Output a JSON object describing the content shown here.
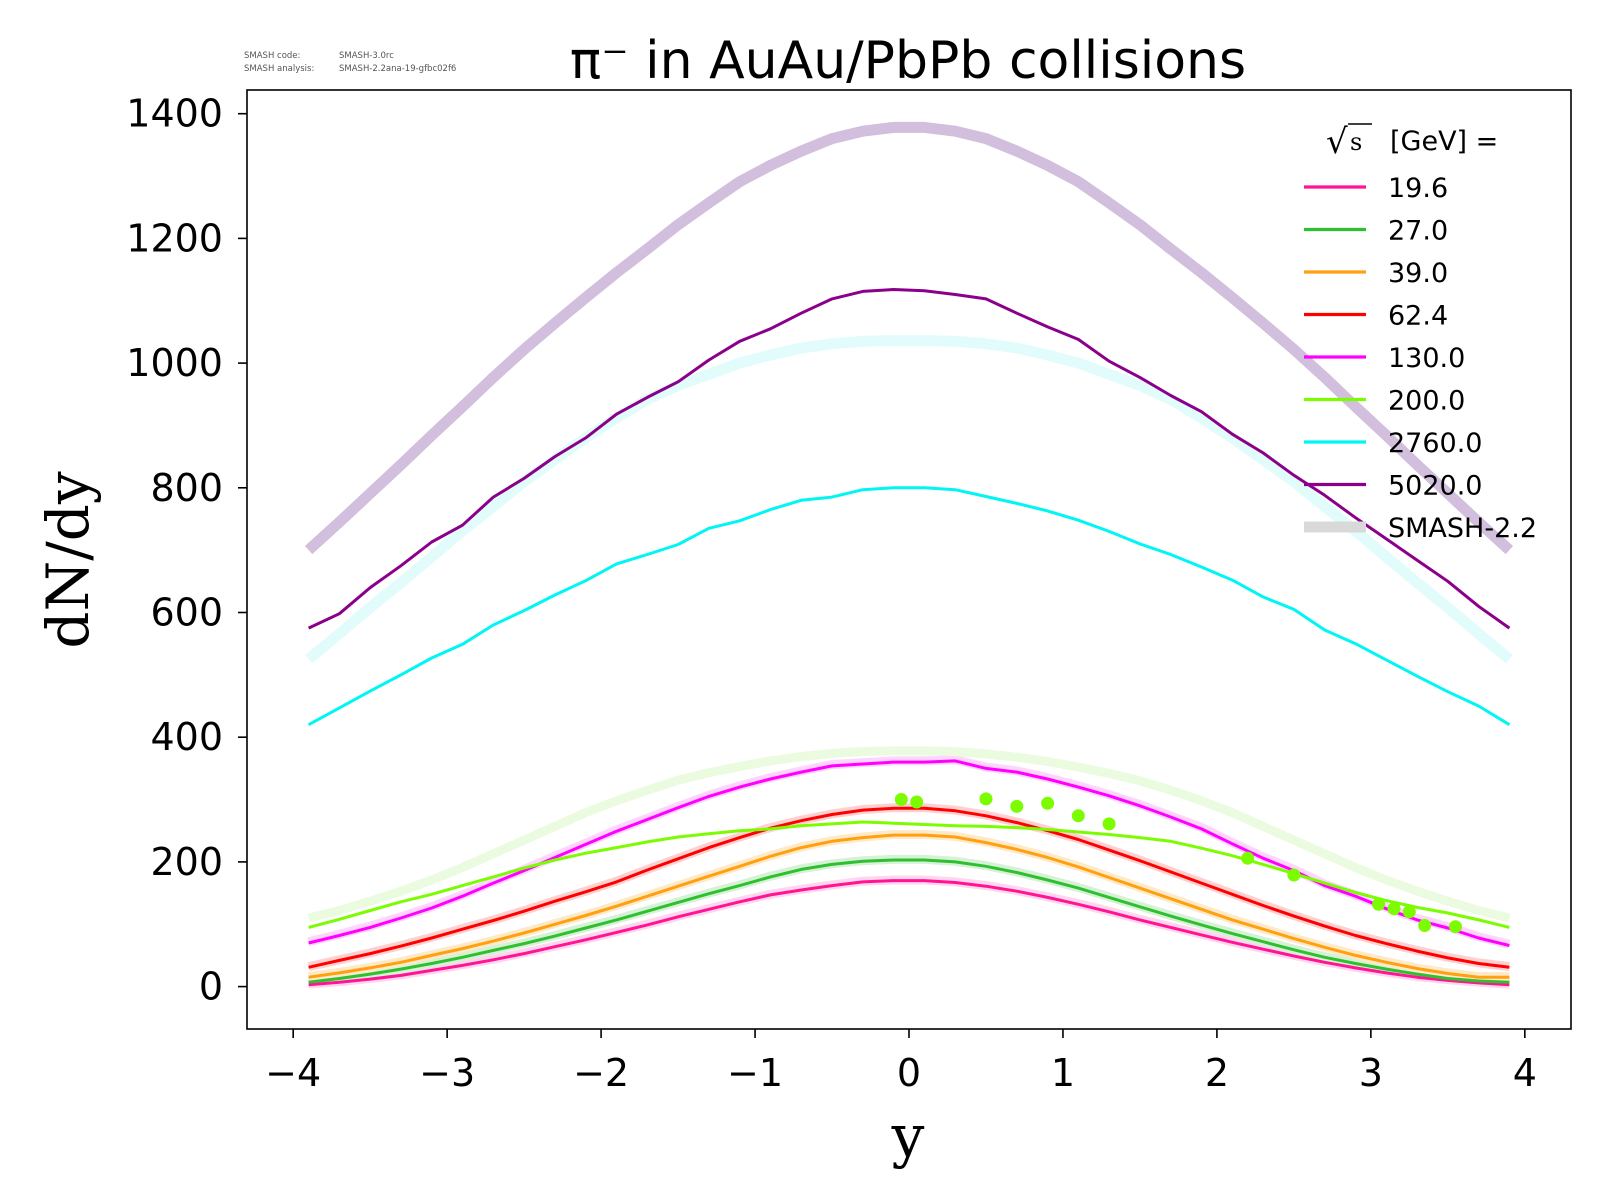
{
  "meta": {
    "line1_label": "SMASH code:",
    "line1_value": "SMASH-3.0rc",
    "line2_label": "SMASH analysis:",
    "line2_value": "SMASH-2.2ana-19-gfbc02f6"
  },
  "chart_data": {
    "type": "line",
    "title": "π⁻ in AuAu/PbPb collisions",
    "xlabel": "y",
    "ylabel": "dN/dy",
    "xlim": [
      -4.3,
      4.3
    ],
    "ylim": [
      -68,
      1438
    ],
    "xticks": [
      -4,
      -3,
      -2,
      -1,
      0,
      1,
      2,
      3,
      4
    ],
    "xtick_labels": [
      "−4",
      "−3",
      "−2",
      "−1",
      "0",
      "1",
      "2",
      "3",
      "4"
    ],
    "yticks": [
      0,
      200,
      400,
      600,
      800,
      1000,
      1200,
      1400
    ],
    "ytick_labels": [
      "0",
      "200",
      "400",
      "600",
      "800",
      "1000",
      "1200",
      "1400"
    ],
    "grid": false,
    "legend": {
      "position": "top-right",
      "header_prefix": "√",
      "header_symbol": "s",
      "header_suffix": "[GeV] =",
      "reference_label": "SMASH-2.2"
    },
    "x": [
      -3.9,
      -3.7,
      -3.5,
      -3.3,
      -3.1,
      -2.9,
      -2.7,
      -2.5,
      -2.3,
      -2.1,
      -1.9,
      -1.7,
      -1.5,
      -1.3,
      -1.1,
      -0.9,
      -0.7,
      -0.5,
      -0.3,
      -0.1,
      0.1,
      0.3,
      0.5,
      0.7,
      0.9,
      1.1,
      1.3,
      1.5,
      1.7,
      1.9,
      2.1,
      2.3,
      2.5,
      2.7,
      2.9,
      3.1,
      3.3,
      3.5,
      3.7,
      3.9
    ],
    "series": [
      {
        "name": "19.6",
        "color": "#ff1493",
        "ref_color": "#ffd6ee",
        "values": [
          3,
          7,
          12,
          18,
          26,
          34,
          43,
          53,
          64,
          75,
          87,
          99,
          112,
          124,
          136,
          147,
          155,
          162,
          168,
          170,
          170,
          167,
          161,
          153,
          143,
          132,
          120,
          107,
          95,
          83,
          71,
          60,
          49,
          39,
          30,
          22,
          15,
          10,
          6,
          3
        ],
        "ref_values": [
          4,
          8,
          13,
          19,
          27,
          35,
          44,
          54,
          65,
          76,
          88,
          100,
          113,
          125,
          137,
          148,
          156,
          163,
          169,
          171,
          171,
          168,
          162,
          154,
          144,
          133,
          121,
          108,
          96,
          84,
          72,
          61,
          50,
          40,
          31,
          23,
          16,
          11,
          7,
          4
        ]
      },
      {
        "name": "27.0",
        "color": "#2fbf2f",
        "ref_color": "#d6f2d6",
        "values": [
          7,
          13,
          20,
          28,
          37,
          47,
          58,
          69,
          81,
          94,
          107,
          121,
          135,
          149,
          162,
          176,
          188,
          196,
          201,
          203,
          203,
          200,
          193,
          183,
          171,
          158,
          143,
          128,
          113,
          99,
          85,
          72,
          59,
          47,
          37,
          28,
          20,
          13,
          9,
          7
        ],
        "ref_values": [
          8,
          14,
          21,
          29,
          38,
          48,
          59,
          70,
          82,
          95,
          108,
          122,
          136,
          150,
          163,
          177,
          189,
          197,
          202,
          204,
          204,
          201,
          194,
          184,
          172,
          159,
          144,
          129,
          114,
          100,
          86,
          73,
          60,
          48,
          38,
          29,
          21,
          14,
          10,
          8
        ]
      },
      {
        "name": "39.0",
        "color": "#ffa010",
        "ref_color": "#ffe9c6",
        "values": [
          15,
          22,
          30,
          39,
          50,
          61,
          73,
          86,
          100,
          114,
          129,
          145,
          161,
          177,
          193,
          209,
          223,
          233,
          239,
          243,
          243,
          240,
          231,
          220,
          207,
          192,
          175,
          158,
          141,
          124,
          107,
          92,
          77,
          63,
          50,
          39,
          29,
          21,
          15,
          15
        ],
        "ref_values": [
          16,
          23,
          31,
          40,
          51,
          62,
          74,
          87,
          101,
          115,
          130,
          146,
          162,
          178,
          194,
          210,
          224,
          234,
          240,
          244,
          244,
          241,
          232,
          221,
          208,
          193,
          176,
          159,
          142,
          125,
          108,
          93,
          78,
          64,
          51,
          40,
          30,
          22,
          16,
          16
        ]
      },
      {
        "name": "62.4",
        "color": "#ff0000",
        "ref_color": "#ffd0d0",
        "values": [
          31,
          42,
          53,
          65,
          78,
          92,
          106,
          121,
          137,
          152,
          168,
          187,
          205,
          223,
          239,
          254,
          266,
          276,
          283,
          286,
          286,
          282,
          274,
          263,
          250,
          236,
          219,
          202,
          184,
          166,
          148,
          130,
          113,
          97,
          82,
          69,
          57,
          46,
          37,
          31
        ],
        "ref_values": [
          32,
          43,
          54,
          66,
          79,
          93,
          107,
          122,
          138,
          153,
          169,
          188,
          206,
          224,
          240,
          255,
          267,
          277,
          284,
          287,
          287,
          283,
          275,
          264,
          251,
          237,
          220,
          203,
          185,
          167,
          149,
          131,
          114,
          98,
          83,
          70,
          58,
          47,
          38,
          32
        ]
      },
      {
        "name": "130.0",
        "color": "#ff00ff",
        "ref_color": "#ffd4ff",
        "values": [
          70,
          82,
          95,
          110,
          126,
          145,
          166,
          186,
          207,
          228,
          249,
          268,
          287,
          305,
          320,
          333,
          344,
          354,
          357,
          360,
          360,
          362,
          350,
          344,
          333,
          320,
          306,
          290,
          272,
          253,
          229,
          206,
          186,
          162,
          145,
          125,
          107,
          94,
          78,
          66
        ],
        "ref_values": [
          72,
          84,
          97,
          112,
          128,
          147,
          168,
          188,
          209,
          230,
          251,
          270,
          289,
          307,
          322,
          335,
          346,
          356,
          359,
          362,
          362,
          364,
          352,
          346,
          335,
          322,
          308,
          292,
          274,
          255,
          231,
          208,
          188,
          164,
          147,
          127,
          109,
          96,
          80,
          68
        ]
      },
      {
        "name": "200.0",
        "color": "#7cfc00",
        "ref_color": "#eafbe0",
        "values": [
          95,
          108,
          122,
          136,
          148,
          162,
          176,
          190,
          203,
          214,
          223,
          232,
          240,
          245,
          250,
          253,
          258,
          261,
          264,
          262,
          260,
          258,
          257,
          255,
          252,
          248,
          244,
          239,
          233,
          222,
          210,
          196,
          181,
          166,
          151,
          138,
          127,
          118,
          107,
          95
        ],
        "ref_values": [
          110,
          122,
          137,
          153,
          171,
          191,
          213,
          235,
          257,
          279,
          298,
          315,
          331,
          343,
          353,
          362,
          369,
          374,
          377,
          378,
          378,
          377,
          373,
          368,
          361,
          352,
          342,
          330,
          315,
          298,
          279,
          257,
          235,
          213,
          191,
          171,
          153,
          137,
          122,
          110
        ]
      },
      {
        "name": "2760.0",
        "color": "#00f5f5",
        "ref_color": "#e2fcfc",
        "values": [
          420,
          447,
          474,
          500,
          527,
          549,
          580,
          603,
          628,
          651,
          678,
          693,
          709,
          735,
          747,
          765,
          780,
          785,
          797,
          800,
          800,
          797,
          786,
          775,
          763,
          748,
          730,
          710,
          693,
          673,
          652,
          625,
          605,
          572,
          550,
          524,
          498,
          473,
          450,
          420
        ],
        "ref_values": [
          525,
          566,
          608,
          648,
          689,
          731,
          770,
          810,
          845,
          880,
          912,
          942,
          964,
          982,
          1000,
          1013,
          1024,
          1031,
          1035,
          1036,
          1036,
          1035,
          1031,
          1024,
          1013,
          1000,
          982,
          964,
          942,
          912,
          880,
          845,
          810,
          770,
          731,
          689,
          648,
          608,
          566,
          525
        ]
      },
      {
        "name": "5020.0",
        "color": "#8b008b",
        "ref_color": "#d2bedd",
        "values": [
          575,
          598,
          640,
          675,
          713,
          740,
          785,
          815,
          850,
          880,
          918,
          945,
          970,
          1005,
          1035,
          1055,
          1080,
          1103,
          1115,
          1118,
          1116,
          1110,
          1103,
          1080,
          1058,
          1038,
          1003,
          977,
          948,
          922,
          886,
          856,
          820,
          788,
          752,
          718,
          684,
          650,
          610,
          575
        ],
        "ref_values": [
          700,
          745,
          791,
          837,
          884,
          930,
          977,
          1022,
          1064,
          1105,
          1145,
          1183,
          1222,
          1257,
          1291,
          1317,
          1340,
          1360,
          1372,
          1378,
          1378,
          1372,
          1360,
          1340,
          1317,
          1291,
          1257,
          1222,
          1183,
          1145,
          1105,
          1064,
          1022,
          977,
          930,
          884,
          837,
          791,
          745,
          700
        ]
      }
    ],
    "data_points": {
      "color": "#7cfc00",
      "x": [
        -0.05,
        0.05,
        0.5,
        0.7,
        0.9,
        1.1,
        1.3,
        2.2,
        2.5,
        3.05,
        3.15,
        3.25,
        3.35,
        3.55
      ],
      "y": [
        300,
        296,
        301,
        289,
        294,
        274,
        261,
        206,
        179,
        132,
        125,
        120,
        98,
        96
      ]
    }
  }
}
